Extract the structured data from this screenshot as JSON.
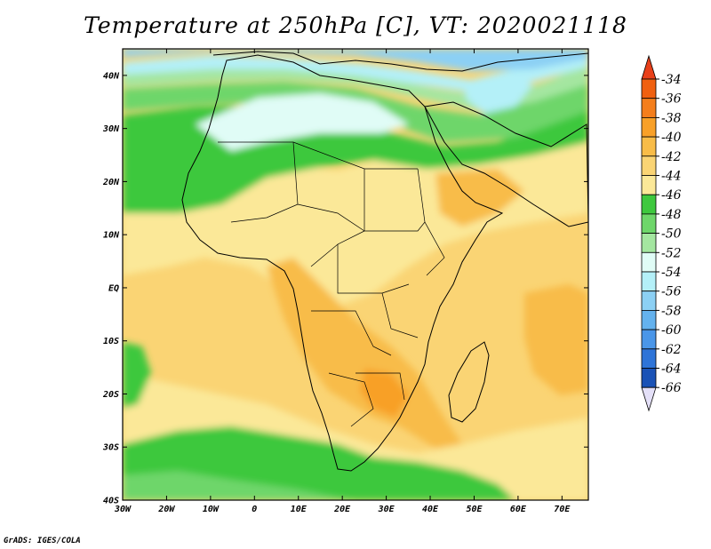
{
  "title": "Temperature at 250hPa [C], VT: 2020021118",
  "credit": "GrADS: IGES/COLA",
  "map": {
    "lon_range": [
      -30,
      76
    ],
    "lat_range": [
      -40,
      45
    ],
    "lat_ticks": [
      {
        "lat": 40,
        "label": "40N"
      },
      {
        "lat": 30,
        "label": "30N"
      },
      {
        "lat": 20,
        "label": "20N"
      },
      {
        "lat": 10,
        "label": "10N"
      },
      {
        "lat": 0,
        "label": "EQ"
      },
      {
        "lat": -10,
        "label": "10S"
      },
      {
        "lat": -20,
        "label": "20S"
      },
      {
        "lat": -30,
        "label": "30S"
      },
      {
        "lat": -40,
        "label": "40S"
      }
    ],
    "lon_ticks": [
      {
        "lon": -30,
        "label": "30W"
      },
      {
        "lon": -20,
        "label": "20W"
      },
      {
        "lon": -10,
        "label": "10W"
      },
      {
        "lon": 0,
        "label": "0"
      },
      {
        "lon": 10,
        "label": "10E"
      },
      {
        "lon": 20,
        "label": "20E"
      },
      {
        "lon": 30,
        "label": "30E"
      },
      {
        "lon": 40,
        "label": "40E"
      },
      {
        "lon": 50,
        "label": "50E"
      },
      {
        "lon": 60,
        "label": "60E"
      },
      {
        "lon": 70,
        "label": "70E"
      }
    ]
  },
  "colorbar": {
    "levels": [
      {
        "label": "-34",
        "color": "#f06010"
      },
      {
        "label": "-36",
        "color": "#f47e1c"
      },
      {
        "label": "-38",
        "color": "#f8a028"
      },
      {
        "label": "-40",
        "color": "#f8bc48"
      },
      {
        "label": "-42",
        "color": "#fad474"
      },
      {
        "label": "-44",
        "color": "#fbe898"
      },
      {
        "label": "-46",
        "color": "#3ec83e"
      },
      {
        "label": "-48",
        "color": "#6ed66a"
      },
      {
        "label": "-50",
        "color": "#a4e6a0"
      },
      {
        "label": "-52",
        "color": "#e0fcf6"
      },
      {
        "label": "-54",
        "color": "#b4f0f8"
      },
      {
        "label": "-56",
        "color": "#8cd0f4"
      },
      {
        "label": "-58",
        "color": "#64b2ee"
      },
      {
        "label": "-60",
        "color": "#4a96e8"
      },
      {
        "label": "-62",
        "color": "#2e74d8"
      },
      {
        "label": "-64",
        "color": "#1a52b6"
      },
      {
        "label": "-66",
        "color": "#0e2a88"
      }
    ],
    "top_arrow_color": "#e8401a",
    "bottom_arrow_color": "#e4e0f8"
  }
}
